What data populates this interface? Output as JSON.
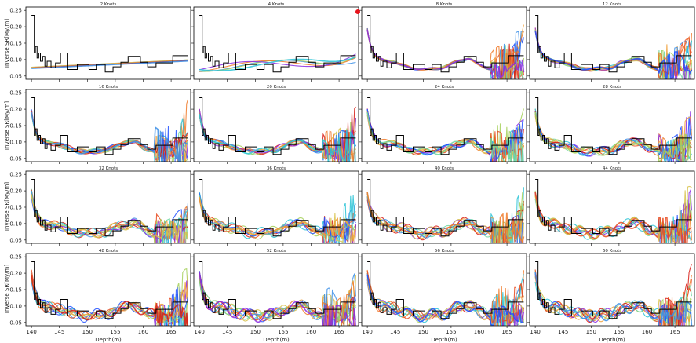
{
  "figure": {
    "ylabel": "Inverse SR[My/m]",
    "xlabel": "Depth(m)",
    "marker_color": "#e8131b"
  },
  "chart_data": {
    "type": "line",
    "description_free": true,
    "xlim": [
      139,
      168.5
    ],
    "ylim": [
      0.04,
      0.26
    ],
    "xticks": [
      140,
      145,
      150,
      155,
      160,
      165
    ],
    "yticks": [
      0.05,
      0.1,
      0.15,
      0.2,
      0.25
    ],
    "ytick_labels": [
      "0.05",
      "0.10",
      "0.15",
      "0.20",
      "0.25"
    ],
    "grid": false,
    "reference_step": {
      "color": "#000000",
      "x": [
        140.0,
        140.5,
        140.5,
        140.7,
        140.7,
        141.0,
        141.0,
        141.3,
        141.3,
        141.6,
        141.6,
        142.0,
        142.0,
        142.4,
        142.4,
        142.8,
        142.8,
        143.5,
        143.5,
        144.3,
        144.3,
        145.2,
        145.2,
        146.5,
        146.5,
        148.2,
        148.2,
        150.3,
        150.3,
        151.6,
        151.6,
        153.2,
        153.2,
        154.6,
        154.6,
        156.0,
        156.0,
        157.3,
        157.3,
        159.5,
        159.5,
        160.8,
        160.8,
        162.3,
        162.3,
        165.3,
        165.3,
        168.0
      ],
      "y": [
        0.235,
        0.235,
        0.12,
        0.12,
        0.14,
        0.14,
        0.105,
        0.105,
        0.12,
        0.12,
        0.095,
        0.095,
        0.11,
        0.11,
        0.08,
        0.08,
        0.095,
        0.095,
        0.075,
        0.075,
        0.09,
        0.09,
        0.12,
        0.12,
        0.07,
        0.07,
        0.085,
        0.085,
        0.07,
        0.07,
        0.085,
        0.085,
        0.062,
        0.062,
        0.078,
        0.078,
        0.092,
        0.092,
        0.11,
        0.11,
        0.092,
        0.092,
        0.078,
        0.078,
        0.09,
        0.09,
        0.112,
        0.112
      ]
    },
    "panels": [
      {
        "title": "2 Knots",
        "knots": 2
      },
      {
        "title": "4 Knots",
        "knots": 4
      },
      {
        "title": "8 Knots",
        "knots": 8
      },
      {
        "title": "12 Knots",
        "knots": 12
      },
      {
        "title": "16 Knots",
        "knots": 16
      },
      {
        "title": "20 Knots",
        "knots": 20
      },
      {
        "title": "24 Knots",
        "knots": 24
      },
      {
        "title": "28 Knots",
        "knots": 28
      },
      {
        "title": "32 Knots",
        "knots": 32
      },
      {
        "title": "36 Knots",
        "knots": 36
      },
      {
        "title": "40 Knots",
        "knots": 40
      },
      {
        "title": "44 Knots",
        "knots": 44
      },
      {
        "title": "48 Knots",
        "knots": 48
      },
      {
        "title": "52 Knots",
        "knots": 52
      },
      {
        "title": "56 Knots",
        "knots": 56
      },
      {
        "title": "60 Knots",
        "knots": 60
      }
    ],
    "fit_colors": [
      "#1f4fff",
      "#3a8ee6",
      "#29c3d6",
      "#6dd6a0",
      "#a6d05a",
      "#d8c24a",
      "#f0a038",
      "#f07a2a",
      "#e84a1e",
      "#d81c14",
      "#8a2be2"
    ]
  }
}
